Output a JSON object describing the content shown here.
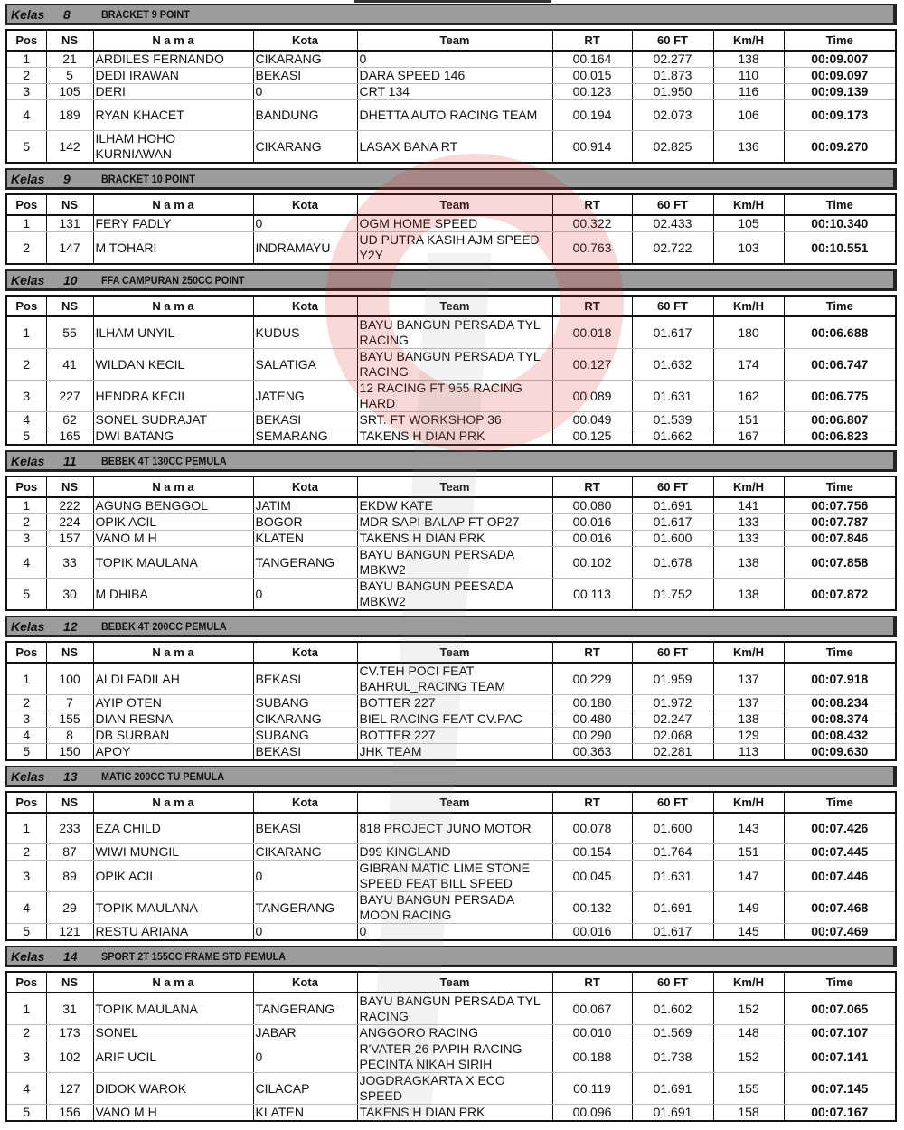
{
  "columns": [
    "Pos",
    "NS",
    "N a m a",
    "Kota",
    "Team",
    "RT",
    "60 FT",
    "Km/H",
    "Time"
  ],
  "kelas_label": "Kelas",
  "sections": [
    {
      "num": "8",
      "title": "BRACKET 9 POINT",
      "rows": [
        [
          "1",
          "21",
          "ARDILES FERNANDO",
          "CIKARANG",
          "0",
          "00.164",
          "02.277",
          "138",
          "00:09.007"
        ],
        [
          "2",
          "5",
          "DEDI IRAWAN",
          "BEKASI",
          "DARA SPEED 146",
          "00.015",
          "01.873",
          "110",
          "00:09.097"
        ],
        [
          "3",
          "105",
          "DERI",
          "0",
          "CRT 134",
          "00.123",
          "01.950",
          "116",
          "00:09.139"
        ],
        [
          "4",
          "189",
          "RYAN KHACET",
          "BANDUNG",
          "DHETTA AUTO RACING TEAM",
          "00.194",
          "02.073",
          "106",
          "00:09.173"
        ],
        [
          "5",
          "142",
          "ILHAM HOHO KURNIAWAN",
          "CIKARANG",
          "LASAX BANA RT",
          "00.914",
          "02.825",
          "136",
          "00:09.270"
        ]
      ]
    },
    {
      "num": "9",
      "title": "BRACKET 10 POINT",
      "rows": [
        [
          "1",
          "131",
          "FERY FADLY",
          "0",
          "OGM HOME SPEED",
          "00.322",
          "02.433",
          "105",
          "00:10.340"
        ],
        [
          "2",
          "147",
          "M TOHARI",
          "INDRAMAYU",
          "UD PUTRA KASIH AJM SPEED Y2Y",
          "00.763",
          "02.722",
          "103",
          "00:10.551"
        ]
      ]
    },
    {
      "num": "10",
      "title": "FFA CAMPURAN 250CC POINT",
      "rows": [
        [
          "1",
          "55",
          "ILHAM UNYIL",
          "KUDUS",
          "BAYU BANGUN PERSADA TYL RACING",
          "00.018",
          "01.617",
          "180",
          "00:06.688"
        ],
        [
          "2",
          "41",
          "WILDAN KECIL",
          "SALATIGA",
          "BAYU BANGUN PERSADA TYL RACING",
          "00.127",
          "01.632",
          "174",
          "00:06.747"
        ],
        [
          "3",
          "227",
          "HENDRA KECIL",
          "JATENG",
          "12 RACING FT 955 RACING HARD",
          "00.089",
          "01.631",
          "162",
          "00:06.775"
        ],
        [
          "4",
          "62",
          "SONEL SUDRAJAT",
          "BEKASI",
          "SRT. FT WORKSHOP 36",
          "00.049",
          "01.539",
          "151",
          "00:06.807"
        ],
        [
          "5",
          "165",
          "DWI BATANG",
          "SEMARANG",
          "TAKENS H DIAN PRK",
          "00.125",
          "01.662",
          "167",
          "00:06.823"
        ]
      ]
    },
    {
      "num": "11",
      "title": "BEBEK 4T 130CC PEMULA",
      "rows": [
        [
          "1",
          "222",
          "AGUNG BENGGOL",
          "JATIM",
          "EKDW KATE",
          "00.080",
          "01.691",
          "141",
          "00:07.756"
        ],
        [
          "2",
          "224",
          "OPIK ACIL",
          "BOGOR",
          "MDR SAPI BALAP FT OP27",
          "00.016",
          "01.617",
          "133",
          "00:07.787"
        ],
        [
          "3",
          "157",
          "VANO M H",
          "KLATEN",
          "TAKENS H DIAN PRK",
          "00.016",
          "01.600",
          "133",
          "00:07.846"
        ],
        [
          "4",
          "33",
          "TOPIK MAULANA",
          "TANGERANG",
          "BAYU BANGUN PERSADA MBKW2",
          "00.102",
          "01.678",
          "138",
          "00:07.858"
        ],
        [
          "5",
          "30",
          "M DHIBA",
          "0",
          "BAYU BANGUN PEESADA MBKW2",
          "00.113",
          "01.752",
          "138",
          "00:07.872"
        ]
      ]
    },
    {
      "num": "12",
      "title": "BEBEK 4T 200CC PEMULA",
      "rows": [
        [
          "1",
          "100",
          "ALDI FADILAH",
          "BEKASI",
          "CV.TEH POCI FEAT BAHRUL_RACING TEAM",
          "00.229",
          "01.959",
          "137",
          "00:07.918"
        ],
        [
          "2",
          "7",
          "AYIP OTEN",
          "SUBANG",
          "BOTTER 227",
          "00.180",
          "01.972",
          "137",
          "00:08.234"
        ],
        [
          "3",
          "155",
          "DIAN RESNA",
          "CIKARANG",
          "BIEL RACING FEAT CV.PAC",
          "00.480",
          "02.247",
          "138",
          "00:08.374"
        ],
        [
          "4",
          "8",
          "DB SURBAN",
          "SUBANG",
          "BOTTER 227",
          "00.290",
          "02.068",
          "129",
          "00:08.432"
        ],
        [
          "5",
          "150",
          "APOY",
          "BEKASI",
          "JHK TEAM",
          "00.363",
          "02.281",
          "113",
          "00:09.630"
        ]
      ]
    },
    {
      "num": "13",
      "title": "MATIC 200CC TU PEMULA",
      "rows": [
        [
          "1",
          "233",
          "EZA CHILD",
          "BEKASI",
          "818 PROJECT JUNO MOTOR",
          "00.078",
          "01.600",
          "143",
          "00:07.426"
        ],
        [
          "2",
          "87",
          "WIWI MUNGIL",
          "CIKARANG",
          "D99 KINGLAND",
          "00.154",
          "01.764",
          "151",
          "00:07.445"
        ],
        [
          "3",
          "89",
          "OPIK ACIL",
          "0",
          "GIBRAN MATIC LIME STONE SPEED FEAT BILL SPEED",
          "00.045",
          "01.631",
          "147",
          "00:07.446"
        ],
        [
          "4",
          "29",
          "TOPIK MAULANA",
          "TANGERANG",
          "BAYU BANGUN PERSADA MOON RACING",
          "00.132",
          "01.691",
          "149",
          "00:07.468"
        ],
        [
          "5",
          "121",
          "RESTU ARIANA",
          "0",
          "0",
          "00.016",
          "01.617",
          "145",
          "00:07.469"
        ]
      ]
    },
    {
      "num": "14",
      "title": "SPORT 2T 155CC FRAME STD PEMULA",
      "rows": [
        [
          "1",
          "31",
          "TOPIK MAULANA",
          "TANGERANG",
          "BAYU BANGUN PERSADA TYL RACING",
          "00.067",
          "01.602",
          "152",
          "00:07.065"
        ],
        [
          "2",
          "173",
          "SONEL",
          "JABAR",
          "ANGGORO RACING",
          "00.010",
          "01.569",
          "148",
          "00:07.107"
        ],
        [
          "3",
          "102",
          "ARIF UCIL",
          "0",
          "R'VATER 26 PAPIH RACING PECINTA NIKAH SIRIH",
          "00.188",
          "01.738",
          "152",
          "00:07.141"
        ],
        [
          "4",
          "127",
          "DIDOK WAROK",
          "CILACAP",
          "JOGDRAGKARTA X ECO SPEED",
          "00.119",
          "01.691",
          "155",
          "00:07.145"
        ],
        [
          "5",
          "156",
          "VANO M H",
          "KLATEN",
          "TAKENS H DIAN PRK",
          "00.096",
          "01.691",
          "158",
          "00:07.167"
        ]
      ]
    }
  ]
}
